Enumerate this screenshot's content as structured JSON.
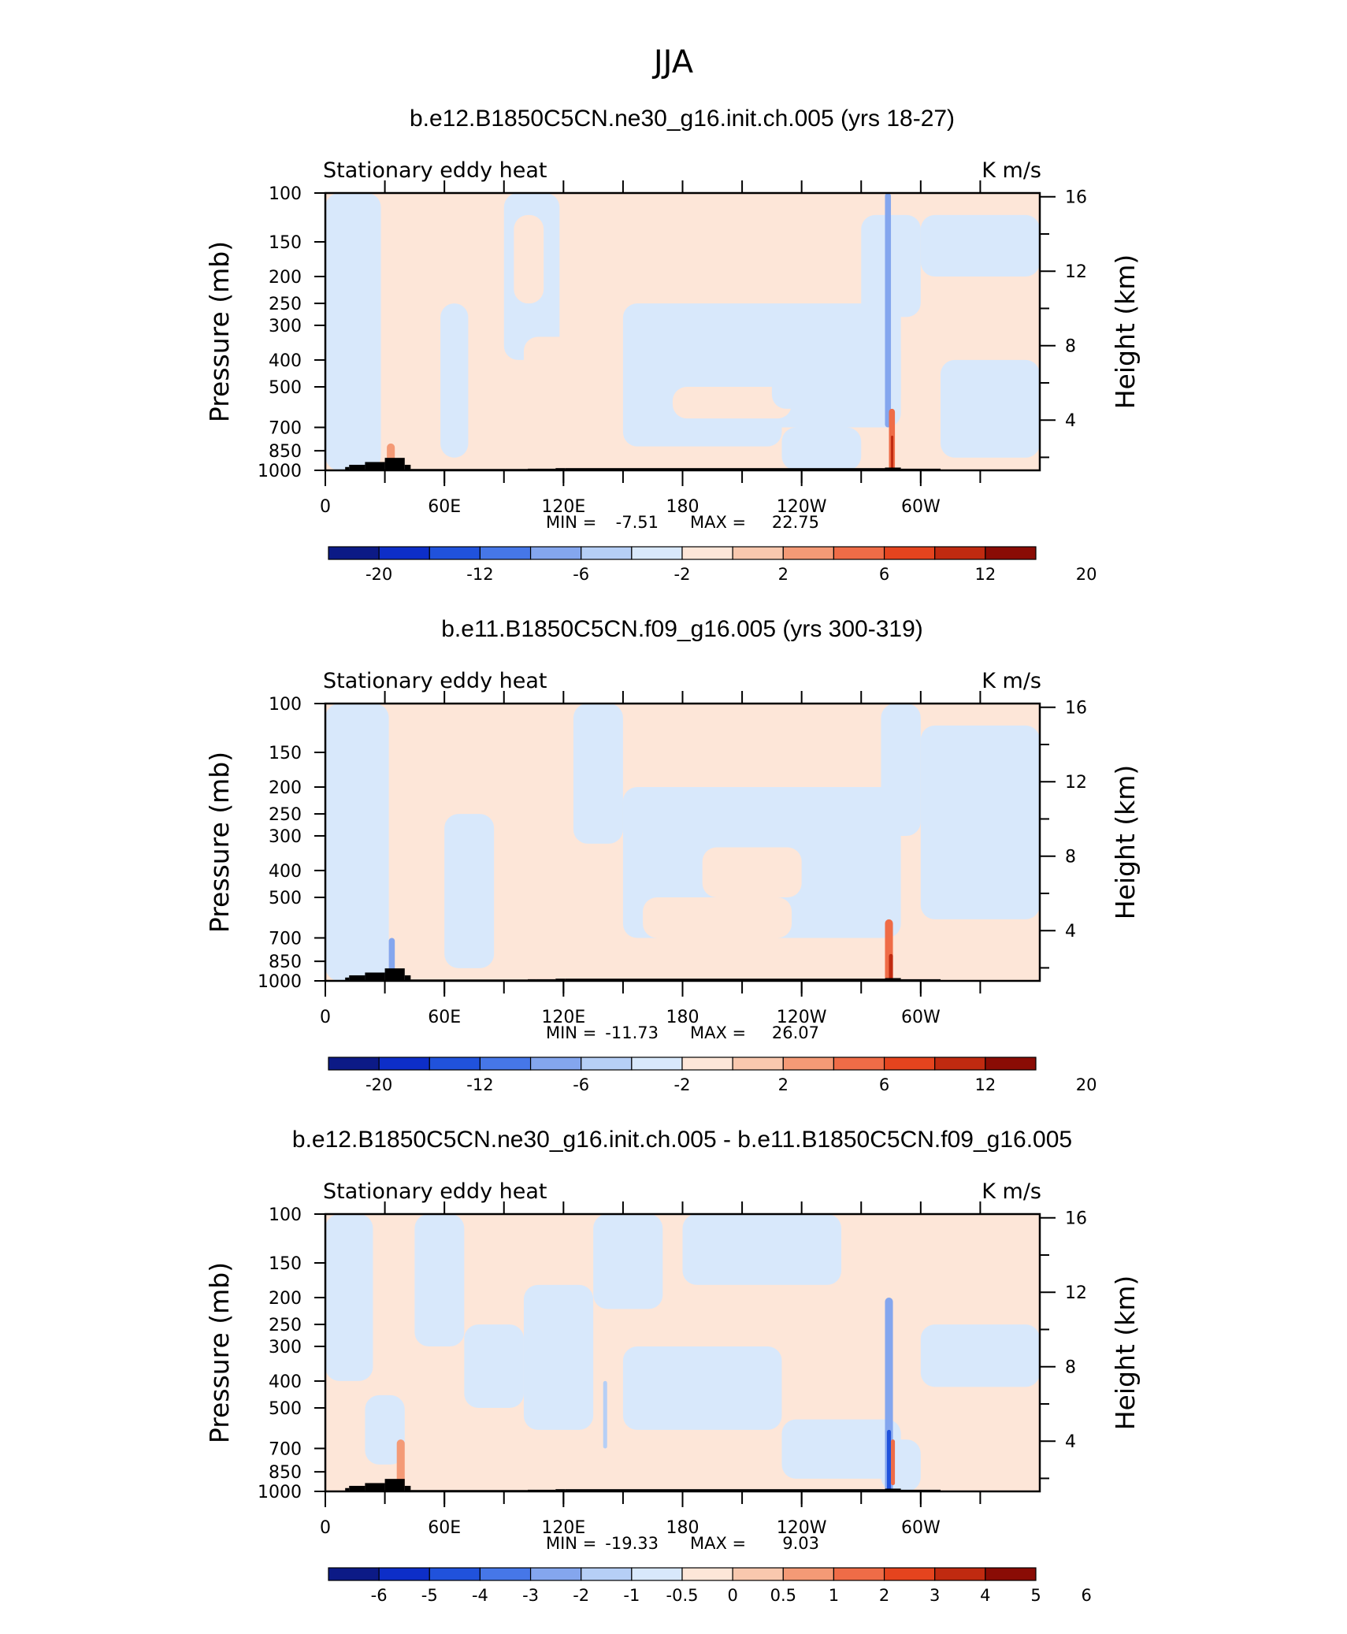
{
  "figure": {
    "title": "JJA"
  },
  "palette": {
    "neg": [
      "#0c1a86",
      "#0d2ec8",
      "#2052dc",
      "#4677e8",
      "#84a6ee",
      "#b6cff6",
      "#d8e8fb"
    ],
    "pos": [
      "#fde6d8",
      "#f9c8ae",
      "#f49a76",
      "#ef6c47",
      "#e5441e",
      "#c02a10",
      "#8a0c05"
    ]
  },
  "chart_data": [
    {
      "type": "heatmap",
      "title": "b.e12.B1850C5CN.ne30_g16.init.ch.005 (yrs 18-27)",
      "left_label": "Stationary eddy heat",
      "right_label": "K m/s",
      "ylabel": "Pressure (mb)",
      "y2label": "Height (km)",
      "x_ticks": [
        "0",
        "60E",
        "120E",
        "180",
        "120W",
        "60W"
      ],
      "x_tick_lons": [
        0,
        60,
        120,
        180,
        240,
        300
      ],
      "xlim": [
        0,
        360
      ],
      "y_ticks": [
        "100",
        "150",
        "200",
        "250",
        "300",
        "400",
        "500",
        "700",
        "850",
        "1000"
      ],
      "y_tick_values": [
        100,
        150,
        200,
        250,
        300,
        400,
        500,
        700,
        850,
        1000
      ],
      "ylim": [
        1000,
        100
      ],
      "y_scale": "log",
      "y2_ticks": [
        "4",
        "8",
        "12",
        "16"
      ],
      "y2_tick_values": [
        4,
        8,
        12,
        16
      ],
      "stats": {
        "min_label": "MIN =",
        "min": "-7.51",
        "max_label": "MAX =",
        "max": "22.75"
      },
      "colorbar_labels": [
        "-20",
        "-12",
        "-6",
        "-2",
        "2",
        "6",
        "12",
        "20"
      ],
      "colorbar_label_positions": [
        1,
        3,
        5,
        7,
        9,
        11,
        13,
        15
      ]
    },
    {
      "type": "heatmap",
      "title": "b.e11.B1850C5CN.f09_g16.005 (yrs 300-319)",
      "left_label": "Stationary eddy heat",
      "right_label": "K m/s",
      "ylabel": "Pressure (mb)",
      "y2label": "Height (km)",
      "x_ticks": [
        "0",
        "60E",
        "120E",
        "180",
        "120W",
        "60W"
      ],
      "x_tick_lons": [
        0,
        60,
        120,
        180,
        240,
        300
      ],
      "xlim": [
        0,
        360
      ],
      "y_ticks": [
        "100",
        "150",
        "200",
        "250",
        "300",
        "400",
        "500",
        "700",
        "850",
        "1000"
      ],
      "y_tick_values": [
        100,
        150,
        200,
        250,
        300,
        400,
        500,
        700,
        850,
        1000
      ],
      "ylim": [
        1000,
        100
      ],
      "y_scale": "log",
      "y2_ticks": [
        "4",
        "8",
        "12",
        "16"
      ],
      "y2_tick_values": [
        4,
        8,
        12,
        16
      ],
      "stats": {
        "min_label": "MIN =",
        "min": "-11.73",
        "max_label": "MAX =",
        "max": "26.07"
      },
      "colorbar_labels": [
        "-20",
        "-12",
        "-6",
        "-2",
        "2",
        "6",
        "12",
        "20"
      ],
      "colorbar_label_positions": [
        1,
        3,
        5,
        7,
        9,
        11,
        13,
        15
      ]
    },
    {
      "type": "heatmap",
      "title": "b.e12.B1850C5CN.ne30_g16.init.ch.005 - b.e11.B1850C5CN.f09_g16.005",
      "left_label": "Stationary eddy heat",
      "right_label": "K m/s",
      "ylabel": "Pressure (mb)",
      "y2label": "Height (km)",
      "x_ticks": [
        "0",
        "60E",
        "120E",
        "180",
        "120W",
        "60W"
      ],
      "x_tick_lons": [
        0,
        60,
        120,
        180,
        240,
        300
      ],
      "xlim": [
        0,
        360
      ],
      "y_ticks": [
        "100",
        "150",
        "200",
        "250",
        "300",
        "400",
        "500",
        "700",
        "850",
        "1000"
      ],
      "y_tick_values": [
        100,
        150,
        200,
        250,
        300,
        400,
        500,
        700,
        850,
        1000
      ],
      "ylim": [
        1000,
        100
      ],
      "y_scale": "log",
      "y2_ticks": [
        "4",
        "8",
        "12",
        "16"
      ],
      "y2_tick_values": [
        4,
        8,
        12,
        16
      ],
      "stats": {
        "min_label": "MIN =",
        "min": "-19.33",
        "max_label": "MAX =",
        "max": "9.03"
      },
      "colorbar_labels": [
        "-6",
        "-5",
        "-4",
        "-3",
        "-2",
        "-1",
        "-0.5",
        "0",
        "0.5",
        "1",
        "2",
        "3",
        "4",
        "5",
        "6"
      ],
      "colorbar_label_positions": [
        1,
        2,
        3,
        4,
        5,
        6,
        7,
        8,
        9,
        10,
        11,
        12,
        13,
        14,
        15
      ]
    }
  ]
}
